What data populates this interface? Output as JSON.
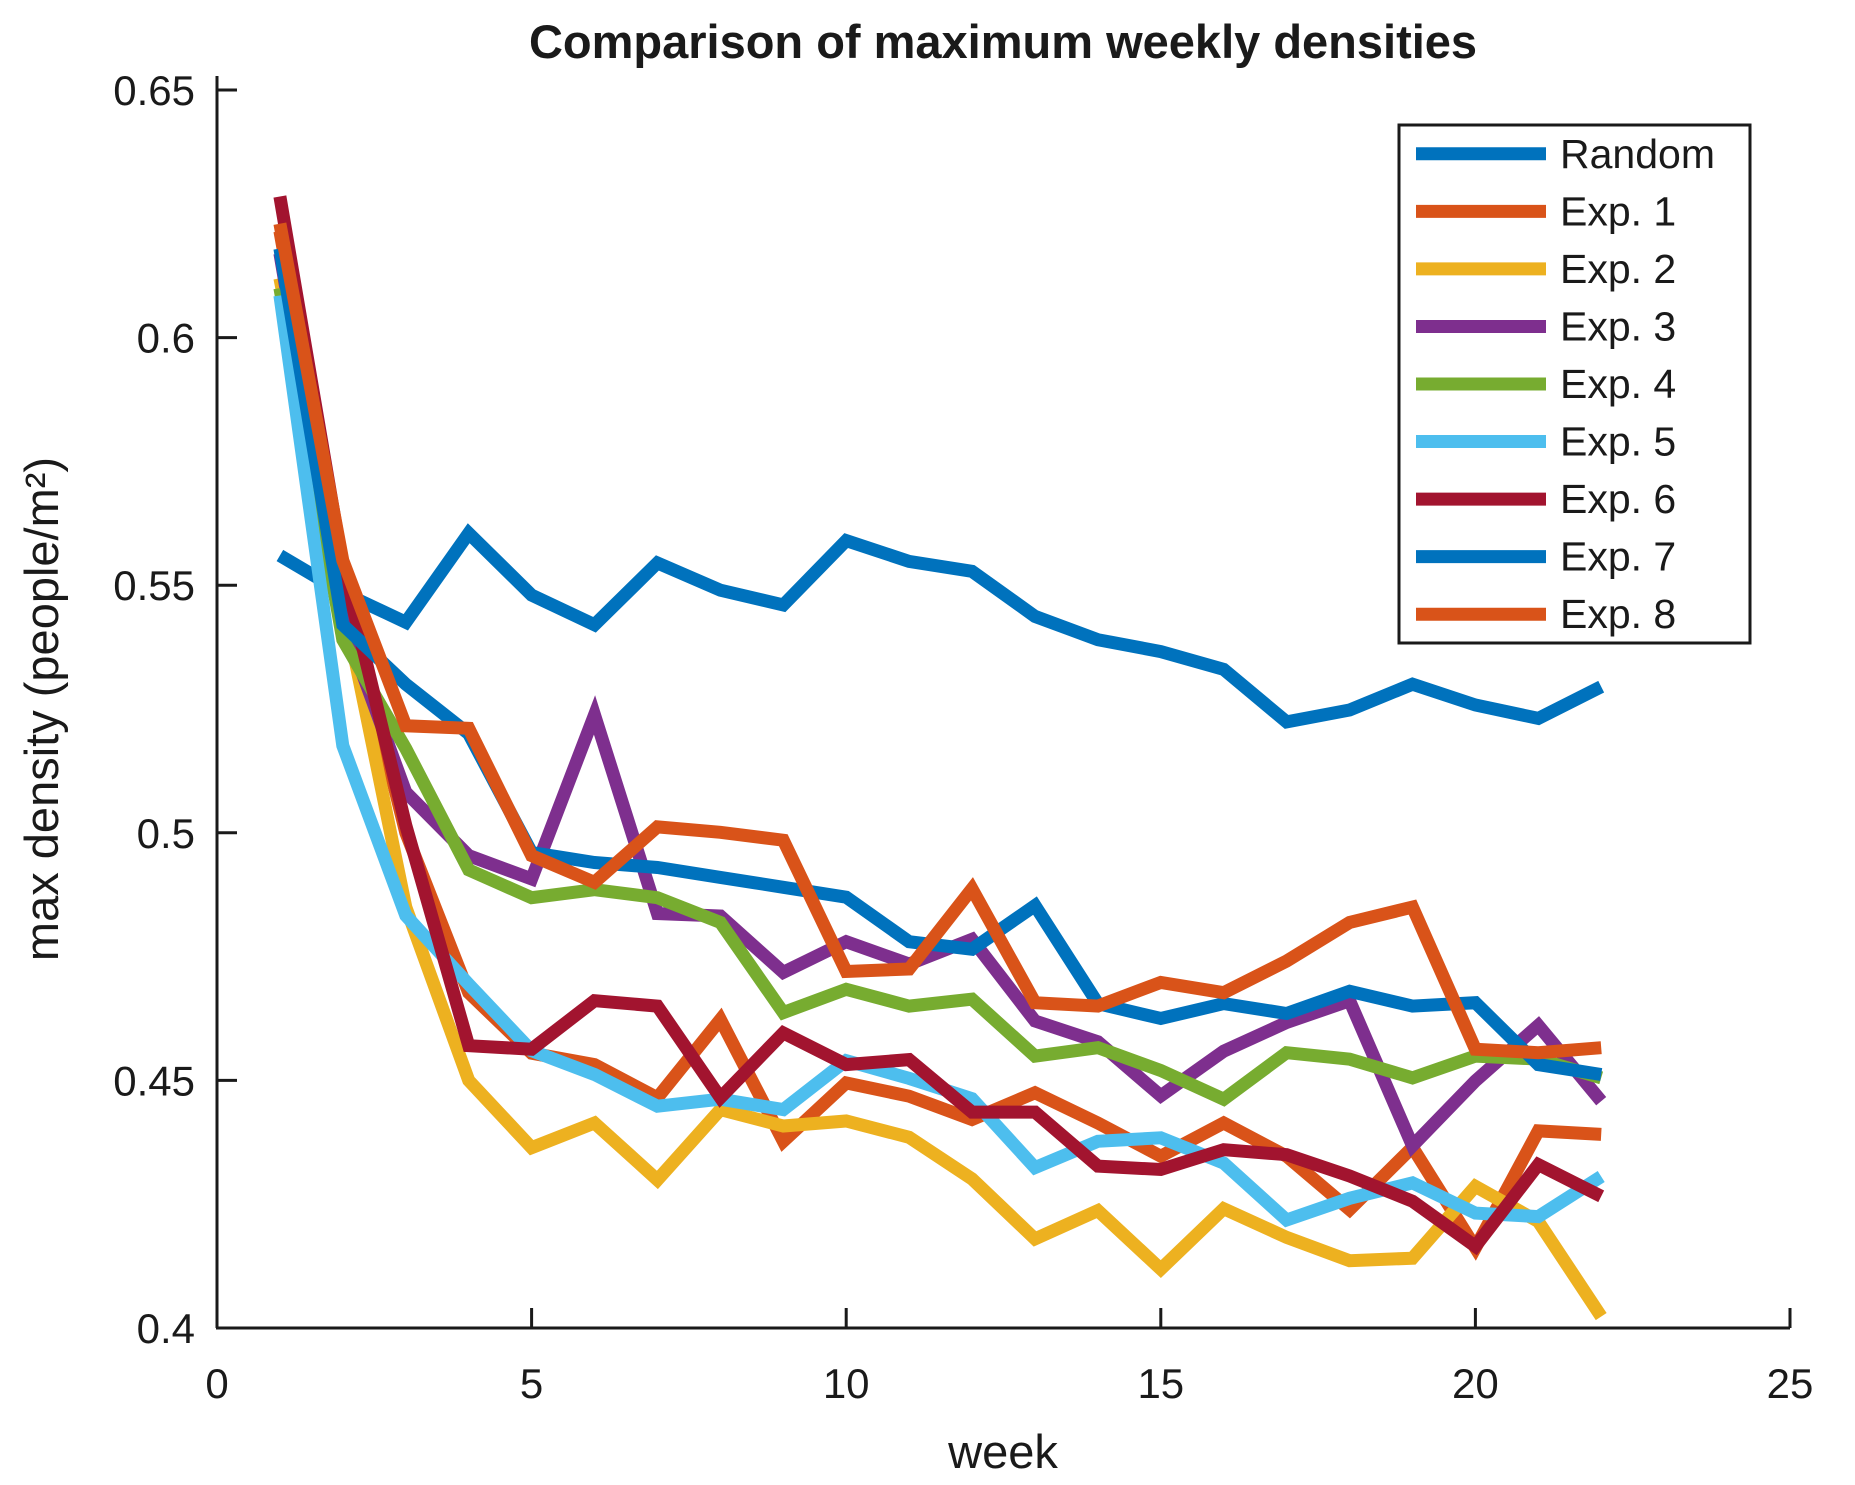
{
  "figure": {
    "background": "#ffffff",
    "axis_color": "#1a1a1a"
  },
  "chart_data": {
    "type": "line",
    "title": "Comparison of maximum weekly densities",
    "xlabel": "week",
    "ylabel": "max density (people/m²)",
    "xlim": [
      0,
      25
    ],
    "ylim": [
      0.4,
      0.65
    ],
    "xticks": [
      0,
      5,
      10,
      15,
      20,
      25
    ],
    "xtick_labels": [
      "0",
      "5",
      "10",
      "15",
      "20",
      "25"
    ],
    "yticks": [
      0.4,
      0.45,
      0.5,
      0.55,
      0.6,
      0.65
    ],
    "ytick_labels": [
      "0.4",
      "0.45",
      "0.5",
      "0.55",
      "0.6",
      "0.65"
    ],
    "grid": false,
    "legend_position": "top-right-inside",
    "tick_direction": "in",
    "line_width": 13,
    "x": [
      1,
      2,
      3,
      4,
      5,
      6,
      7,
      8,
      9,
      10,
      11,
      12,
      13,
      14,
      15,
      16,
      17,
      18,
      19,
      20,
      21,
      22
    ],
    "series": [
      {
        "name": "Random",
        "color": "#0072BD",
        "values": [
          0.556,
          0.5485,
          0.5425,
          0.5605,
          0.548,
          0.542,
          0.5545,
          0.549,
          0.546,
          0.559,
          0.5548,
          0.5528,
          0.5437,
          0.539,
          0.5366,
          0.533,
          0.5224,
          0.5248,
          0.53,
          0.5258,
          0.5231,
          0.5295
        ]
      },
      {
        "name": "Exp. 1",
        "color": "#D95319",
        "values": [
          0.6215,
          0.551,
          0.5,
          0.4677,
          0.4555,
          0.4532,
          0.4465,
          0.4623,
          0.4377,
          0.4495,
          0.4468,
          0.4421,
          0.4475,
          0.4414,
          0.4347,
          0.4414,
          0.4347,
          0.4239,
          0.4365,
          0.4162,
          0.4398,
          0.4391
        ]
      },
      {
        "name": "Exp. 2",
        "color": "#EDB120",
        "values": [
          0.612,
          0.547,
          0.485,
          0.45,
          0.4364,
          0.4414,
          0.4299,
          0.4441,
          0.4408,
          0.4418,
          0.4385,
          0.4301,
          0.418,
          0.4237,
          0.4119,
          0.4241,
          0.4183,
          0.4136,
          0.4141,
          0.4286,
          0.4215,
          0.4023
        ]
      },
      {
        "name": "Exp. 3",
        "color": "#7E2F8E",
        "values": [
          0.617,
          0.543,
          0.5082,
          0.4954,
          0.4907,
          0.5238,
          0.4837,
          0.4832,
          0.4718,
          0.478,
          0.4735,
          0.4785,
          0.462,
          0.4578,
          0.4469,
          0.4559,
          0.4617,
          0.4661,
          0.4368,
          0.4499,
          0.4611,
          0.4458
        ]
      },
      {
        "name": "Exp. 4",
        "color": "#77AC30",
        "values": [
          0.61,
          0.539,
          0.517,
          0.4925,
          0.4869,
          0.4885,
          0.4869,
          0.4819,
          0.4637,
          0.4684,
          0.465,
          0.4664,
          0.4549,
          0.4566,
          0.452,
          0.4462,
          0.4556,
          0.4543,
          0.4505,
          0.4549,
          0.4543,
          0.4505
        ]
      },
      {
        "name": "Exp. 5",
        "color": "#4DBEEE",
        "values": [
          0.6085,
          0.5176,
          0.4833,
          0.4694,
          0.456,
          0.4512,
          0.4448,
          0.4462,
          0.4441,
          0.454,
          0.4504,
          0.4463,
          0.4324,
          0.4377,
          0.4384,
          0.4333,
          0.4218,
          0.4262,
          0.4293,
          0.4232,
          0.4225,
          0.4306
        ]
      },
      {
        "name": "Exp. 6",
        "color": "#A2142F",
        "values": [
          0.6285,
          0.554,
          0.5015,
          0.457,
          0.4563,
          0.4661,
          0.465,
          0.4465,
          0.4596,
          0.4532,
          0.4542,
          0.4436,
          0.4436,
          0.4327,
          0.432,
          0.436,
          0.435,
          0.4307,
          0.4256,
          0.4165,
          0.433,
          0.4266
        ]
      },
      {
        "name": "Exp. 7",
        "color": "#0072BD",
        "values": [
          0.618,
          0.542,
          0.53,
          0.52,
          0.496,
          0.494,
          0.493,
          0.491,
          0.489,
          0.487,
          0.478,
          0.4765,
          0.4853,
          0.4655,
          0.4625,
          0.4655,
          0.4635,
          0.468,
          0.465,
          0.4657,
          0.4532,
          0.4512
        ]
      },
      {
        "name": "Exp. 8",
        "color": "#D95319",
        "values": [
          0.623,
          0.555,
          0.5216,
          0.5211,
          0.4954,
          0.49,
          0.5012,
          0.5001,
          0.4985,
          0.472,
          0.4725,
          0.4887,
          0.4657,
          0.465,
          0.4698,
          0.4677,
          0.4741,
          0.4819,
          0.485,
          0.4563,
          0.4556,
          0.4566
        ]
      }
    ]
  }
}
